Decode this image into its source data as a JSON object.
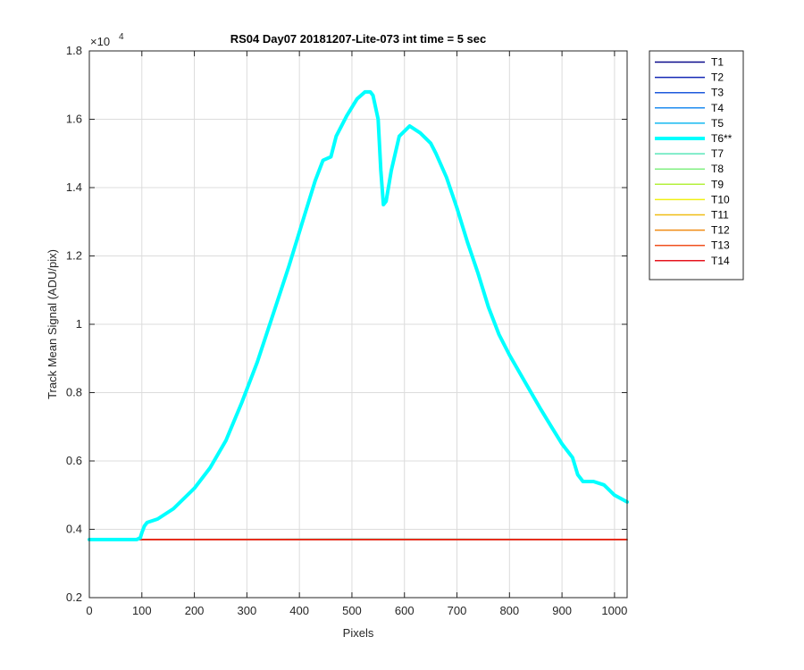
{
  "chart_data": {
    "type": "line",
    "title": "RS04 Day07 20181207-Lite-073 int time = 5 sec",
    "xlabel": "Pixels",
    "ylabel": "Track Mean Signal (ADU/pix)",
    "xlim": [
      0,
      1024
    ],
    "ylim": [
      2000,
      18000
    ],
    "xticks": [
      0,
      100,
      200,
      300,
      400,
      500,
      600,
      700,
      800,
      900,
      1000
    ],
    "yticks": [
      2000,
      4000,
      6000,
      8000,
      10000,
      12000,
      14000,
      16000,
      18000
    ],
    "ytick_labels": [
      "0.2",
      "0.4",
      "0.6",
      "0.8",
      "1",
      "1.2",
      "1.4",
      "1.6",
      "1.8"
    ],
    "y_exponent_base": "×10",
    "y_exponent_power": "4",
    "grid": true,
    "legend_position": "outside-right-top",
    "series": [
      {
        "name": "T1",
        "color": "#0b0b8c",
        "width": 1.5,
        "x": [
          0,
          1024
        ],
        "y": [
          3700,
          3700
        ]
      },
      {
        "name": "T2",
        "color": "#1428b4",
        "width": 1.5,
        "x": [
          0,
          1024
        ],
        "y": [
          3700,
          3700
        ]
      },
      {
        "name": "T3",
        "color": "#1e5adc",
        "width": 1.5,
        "x": [
          0,
          1024
        ],
        "y": [
          3700,
          3700
        ]
      },
      {
        "name": "T4",
        "color": "#1e8cf0",
        "width": 1.5,
        "x": [
          0,
          1024
        ],
        "y": [
          3700,
          3700
        ]
      },
      {
        "name": "T5",
        "color": "#14b9f0",
        "width": 1.5,
        "x": [
          0,
          1024
        ],
        "y": [
          3700,
          3700
        ]
      },
      {
        "name": "T7",
        "color": "#5ae6b9",
        "width": 1.5,
        "x": [
          0,
          100,
          300,
          500,
          700,
          900,
          1024
        ],
        "y": [
          3700,
          3705,
          3710,
          3715,
          3712,
          3706,
          3702
        ]
      },
      {
        "name": "T8",
        "color": "#82f082",
        "width": 1.5,
        "x": [
          0,
          1024
        ],
        "y": [
          3700,
          3700
        ]
      },
      {
        "name": "T9",
        "color": "#b4f03c",
        "width": 1.5,
        "x": [
          0,
          1024
        ],
        "y": [
          3700,
          3700
        ]
      },
      {
        "name": "T10",
        "color": "#f0f014",
        "width": 1.5,
        "x": [
          0,
          1024
        ],
        "y": [
          3700,
          3700
        ]
      },
      {
        "name": "T11",
        "color": "#f0be14",
        "width": 1.5,
        "x": [
          0,
          1024
        ],
        "y": [
          3700,
          3700
        ]
      },
      {
        "name": "T12",
        "color": "#f08c14",
        "width": 1.5,
        "x": [
          0,
          1024
        ],
        "y": [
          3700,
          3700
        ]
      },
      {
        "name": "T13",
        "color": "#f0501e",
        "width": 1.5,
        "x": [
          0,
          1024
        ],
        "y": [
          3700,
          3700
        ]
      },
      {
        "name": "T14",
        "color": "#e6141e",
        "width": 1.5,
        "x": [
          0,
          1024
        ],
        "y": [
          3700,
          3700
        ]
      },
      {
        "name": "T6**",
        "color": "#00ffff",
        "width": 4,
        "x": [
          0,
          90,
          97,
          100,
          105,
          110,
          130,
          160,
          200,
          230,
          260,
          290,
          320,
          350,
          380,
          410,
          430,
          445,
          460,
          470,
          490,
          510,
          525,
          535,
          540,
          550,
          555,
          560,
          565,
          575,
          590,
          610,
          630,
          650,
          660,
          680,
          700,
          720,
          740,
          760,
          780,
          800,
          830,
          860,
          880,
          900,
          920,
          930,
          940,
          950,
          960,
          980,
          1000,
          1024
        ],
        "y": [
          3700,
          3700,
          3750,
          3900,
          4100,
          4200,
          4300,
          4600,
          5200,
          5800,
          6600,
          7700,
          8900,
          10300,
          11700,
          13200,
          14200,
          14800,
          14900,
          15500,
          16100,
          16600,
          16800,
          16800,
          16700,
          16000,
          14500,
          13500,
          13600,
          14500,
          15500,
          15800,
          15600,
          15300,
          15000,
          14300,
          13400,
          12400,
          11500,
          10500,
          9700,
          9100,
          8300,
          7500,
          7000,
          6500,
          6100,
          5600,
          5400,
          5400,
          5400,
          5300,
          5000,
          4800
        ]
      }
    ],
    "legend_order": [
      "T1",
      "T2",
      "T3",
      "T4",
      "T5",
      "T6**",
      "T7",
      "T8",
      "T9",
      "T10",
      "T11",
      "T12",
      "T13",
      "T14"
    ]
  }
}
